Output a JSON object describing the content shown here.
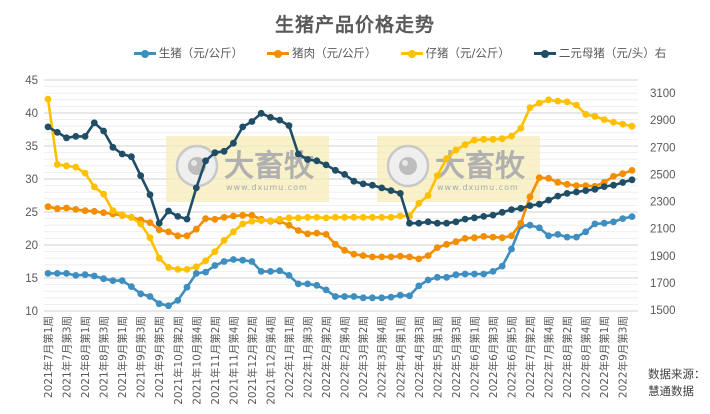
{
  "chart_data": {
    "type": "line",
    "title": "生猪产品价格走势",
    "xlabel": "",
    "ylabel": "",
    "y2label": "",
    "ylim": [
      10,
      45
    ],
    "y2lim": [
      1500,
      3100
    ],
    "yticks": [
      10,
      15,
      20,
      25,
      30,
      35,
      40,
      45
    ],
    "y2ticks": [
      1500,
      1700,
      1900,
      2100,
      2300,
      2500,
      2700,
      2900,
      3100
    ],
    "grid": true,
    "legend_position": "top",
    "x_tick_labels": [
      "2021年7月第1周",
      "2021年7月第3周",
      "2021年8月第1周",
      "2021年8月第3周",
      "2021年9月第1周",
      "2021年9月第3周",
      "2021年9月第5周",
      "2021年10月第2周",
      "2021年10月第4周",
      "2021年11月第2周",
      "2021年11月第4周",
      "2021年12月第2周",
      "2021年12月第4周",
      "2022年1月第1周",
      "2022年1月第3周",
      "2022年2月第2周",
      "2022年2月第4周",
      "2022年3月第2周",
      "2022年3月第4周",
      "2022年4月第1周",
      "2022年4月第3周",
      "2022年5月第1周",
      "2022年5月第3周",
      "2022年6月第1周",
      "2022年6月第3周",
      "2022年6月第5周",
      "2022年7月第2周",
      "2022年7月第4周",
      "2022年8月第2周",
      "2022年8月第4周",
      "2022年9月第1周",
      "2022年9月第3周"
    ],
    "n_points": 64,
    "series": [
      {
        "name": "生猪（元/公斤）",
        "axis": "left",
        "color": "#3E8EBF",
        "values": [
          15.7,
          15.7,
          15.7,
          15.4,
          15.5,
          15.3,
          14.9,
          14.6,
          14.6,
          13.7,
          12.6,
          12.2,
          11.1,
          10.8,
          11.6,
          13.6,
          15.7,
          15.9,
          16.9,
          17.5,
          17.8,
          17.7,
          17.5,
          16.0,
          16.0,
          16.1,
          15.4,
          14.1,
          14.1,
          13.9,
          13.2,
          12.2,
          12.2,
          12.2,
          12.0,
          12.0,
          12.0,
          12.1,
          12.4,
          12.3,
          13.8,
          14.7,
          15.1,
          15.1,
          15.5,
          15.6,
          15.6,
          15.6,
          16.0,
          16.8,
          19.4,
          22.9,
          23.0,
          22.6,
          21.4,
          21.6,
          21.2,
          21.2,
          22.0,
          23.2,
          23.3,
          23.5,
          24.0,
          24.3
        ]
      },
      {
        "name": "猪肉（元/公斤）",
        "axis": "left",
        "color": "#F28E00",
        "values": [
          25.8,
          25.5,
          25.6,
          25.4,
          25.2,
          25.1,
          24.9,
          24.7,
          24.5,
          24.2,
          23.8,
          23.4,
          22.3,
          22.0,
          21.4,
          21.4,
          22.4,
          24.0,
          23.9,
          24.2,
          24.4,
          24.5,
          24.5,
          23.9,
          23.6,
          23.6,
          23.0,
          22.2,
          21.7,
          21.8,
          21.6,
          20.1,
          19.2,
          18.6,
          18.4,
          18.2,
          18.2,
          18.2,
          18.3,
          18.2,
          17.9,
          18.4,
          19.6,
          20.1,
          20.5,
          21.0,
          21.1,
          21.3,
          21.2,
          21.1,
          21.4,
          23.3,
          27.3,
          30.2,
          30.1,
          29.5,
          29.2,
          29.0,
          29.0,
          28.9,
          29.5,
          30.4,
          30.8,
          31.3
        ]
      },
      {
        "name": "仔猪（元/公斤）",
        "axis": "left",
        "color": "#FFC000",
        "values": [
          42.1,
          32.2,
          32.0,
          31.8,
          30.9,
          28.8,
          27.7,
          25.2,
          24.6,
          24.2,
          23.2,
          21.1,
          18.0,
          16.6,
          16.3,
          16.3,
          16.7,
          17.6,
          19.0,
          20.7,
          22.0,
          23.2,
          23.6,
          23.7,
          23.7,
          23.9,
          24.1,
          24.1,
          24.2,
          24.2,
          24.1,
          24.2,
          24.2,
          24.2,
          24.2,
          24.2,
          24.2,
          24.2,
          24.4,
          24.4,
          26.3,
          27.5,
          30.5,
          33.1,
          34.4,
          35.2,
          35.9,
          36.0,
          36.0,
          36.1,
          36.5,
          37.7,
          40.8,
          41.5,
          42.0,
          41.8,
          41.7,
          41.2,
          39.8,
          39.5,
          39.0,
          38.6,
          38.3,
          38.0
        ]
      },
      {
        "name": "二元母猪（元/头）右",
        "axis": "right",
        "color": "#1F4E66",
        "values": [
          2850,
          2810,
          2770,
          2780,
          2780,
          2880,
          2820,
          2700,
          2650,
          2630,
          2490,
          2350,
          2140,
          2230,
          2190,
          2170,
          2400,
          2600,
          2660,
          2670,
          2730,
          2850,
          2890,
          2950,
          2920,
          2900,
          2860,
          2650,
          2610,
          2600,
          2570,
          2530,
          2500,
          2450,
          2430,
          2420,
          2400,
          2380,
          2360,
          2140,
          2140,
          2150,
          2140,
          2140,
          2150,
          2170,
          2180,
          2190,
          2200,
          2220,
          2240,
          2250,
          2270,
          2280,
          2310,
          2340,
          2360,
          2370,
          2380,
          2390,
          2410,
          2420,
          2440,
          2460
        ]
      }
    ]
  },
  "legend": [
    {
      "label": "生猪（元/公斤）",
      "color": "#3E8EBF"
    },
    {
      "label": "猪肉（元/公斤）",
      "color": "#F28E00"
    },
    {
      "label": "仔猪（元/公斤）",
      "color": "#FFC000"
    },
    {
      "label": "二元母猪（元/头）右",
      "color": "#1F4E66"
    }
  ],
  "watermark": {
    "brand": "大畜牧",
    "url": "www.dxumu.com"
  },
  "source": {
    "line1": "数据来源：",
    "line2": "慧通数据"
  }
}
